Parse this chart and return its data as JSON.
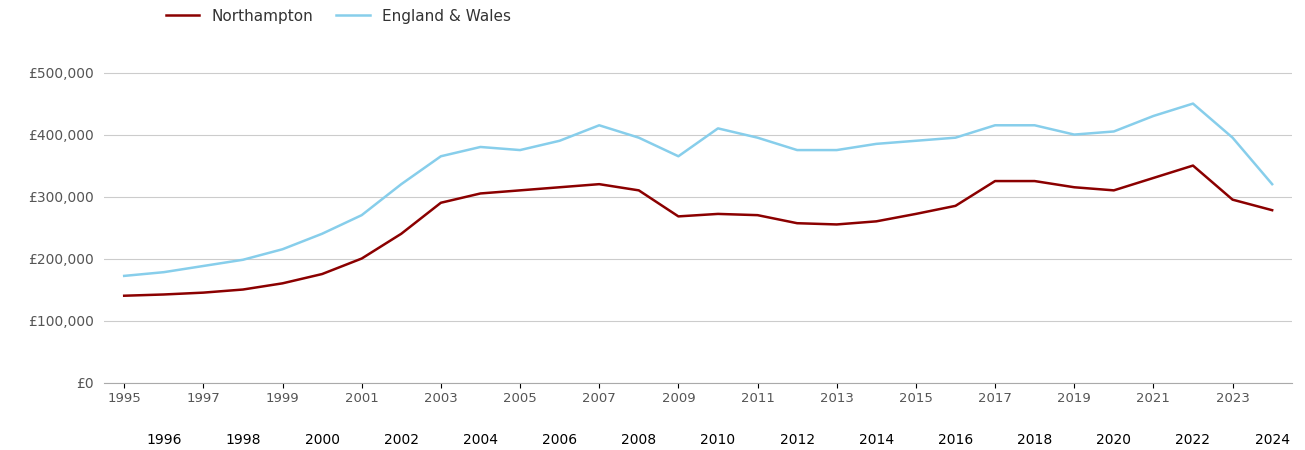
{
  "northampton_years": [
    1995,
    1996,
    1997,
    1998,
    1999,
    2000,
    2001,
    2002,
    2003,
    2004,
    2005,
    2006,
    2007,
    2008,
    2009,
    2010,
    2011,
    2012,
    2013,
    2014,
    2015,
    2016,
    2017,
    2018,
    2019,
    2020,
    2021,
    2022,
    2023,
    2024
  ],
  "northampton_values": [
    140000,
    142000,
    145000,
    150000,
    160000,
    175000,
    200000,
    240000,
    290000,
    305000,
    310000,
    315000,
    320000,
    310000,
    268000,
    272000,
    270000,
    257000,
    255000,
    260000,
    272000,
    285000,
    325000,
    325000,
    315000,
    310000,
    330000,
    350000,
    295000,
    278000
  ],
  "england_years": [
    1995,
    1996,
    1997,
    1998,
    1999,
    2000,
    2001,
    2002,
    2003,
    2004,
    2005,
    2006,
    2007,
    2008,
    2009,
    2010,
    2011,
    2012,
    2013,
    2014,
    2015,
    2016,
    2017,
    2018,
    2019,
    2020,
    2021,
    2022,
    2023,
    2024
  ],
  "england_values": [
    172000,
    178000,
    188000,
    198000,
    215000,
    240000,
    270000,
    320000,
    365000,
    380000,
    375000,
    390000,
    415000,
    395000,
    365000,
    410000,
    395000,
    375000,
    375000,
    385000,
    390000,
    395000,
    415000,
    415000,
    400000,
    405000,
    430000,
    450000,
    395000,
    320000
  ],
  "northampton_color": "#8b0000",
  "england_color": "#87ceeb",
  "line_width": 1.8,
  "ylim": [
    0,
    530000
  ],
  "yticks": [
    0,
    100000,
    200000,
    300000,
    400000,
    500000
  ],
  "ytick_labels": [
    "£0",
    "£100,000",
    "£200,000",
    "£300,000",
    "£400,000",
    "£500,000"
  ],
  "bg_color": "#ffffff",
  "grid_color": "#cccccc",
  "legend_labels": [
    "Northampton",
    "England & Wales"
  ],
  "odd_years": [
    1995,
    1997,
    1999,
    2001,
    2003,
    2005,
    2007,
    2009,
    2011,
    2013,
    2015,
    2017,
    2019,
    2021,
    2023
  ],
  "even_years": [
    1996,
    1998,
    2000,
    2002,
    2004,
    2006,
    2008,
    2010,
    2012,
    2014,
    2016,
    2018,
    2020,
    2022,
    2024
  ]
}
